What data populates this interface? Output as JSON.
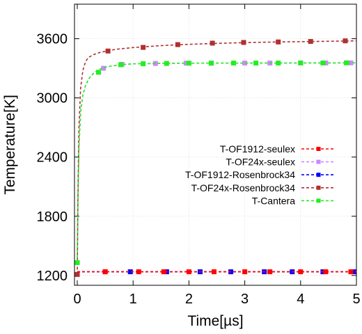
{
  "chart_data": {
    "type": "line",
    "xlabel": "Time[µs]",
    "ylabel": "Temperature[K]",
    "xlim": [
      -0.05,
      5
    ],
    "ylim": [
      1100,
      3950
    ],
    "xticks": [
      0,
      1,
      2,
      3,
      4,
      5
    ],
    "xtick_labels": [
      "0",
      "1",
      "2",
      "3",
      "4",
      "5"
    ],
    "yticks": [
      1200,
      1800,
      2400,
      3000,
      3600
    ],
    "ytick_labels": [
      "1200",
      "1800",
      "2400",
      "3000",
      "3600"
    ],
    "grid": true,
    "legend_position": "right",
    "series": [
      {
        "name": "T-OF1912-seulex",
        "color": "#ff0000",
        "marker": "square",
        "curve": [
          [
            0,
            1237
          ],
          [
            1,
            1237
          ],
          [
            2,
            1237
          ],
          [
            3,
            1237
          ],
          [
            4,
            1237
          ],
          [
            5,
            1237
          ]
        ],
        "points": [
          [
            0.5,
            1237
          ],
          [
            1.1,
            1237
          ],
          [
            1.55,
            1237
          ],
          [
            2.0,
            1237
          ],
          [
            2.45,
            1237
          ],
          [
            3.0,
            1237
          ],
          [
            3.45,
            1237
          ],
          [
            4.0,
            1237
          ],
          [
            4.45,
            1237
          ],
          [
            4.9,
            1237
          ]
        ]
      },
      {
        "name": "T-OF24x-seulex",
        "color": "#cc88ff",
        "marker": "square",
        "curve": [
          [
            0,
            1330
          ],
          [
            0.01,
            1900
          ],
          [
            0.03,
            2500
          ],
          [
            0.06,
            2850
          ],
          [
            0.1,
            3030
          ],
          [
            0.15,
            3130
          ],
          [
            0.22,
            3205
          ],
          [
            0.3,
            3255
          ],
          [
            0.4,
            3290
          ],
          [
            0.5,
            3310
          ],
          [
            0.6,
            3322
          ],
          [
            0.8,
            3338
          ],
          [
            1.0,
            3345
          ],
          [
            1.5,
            3350
          ],
          [
            2.0,
            3352
          ],
          [
            3.0,
            3353
          ],
          [
            4.0,
            3354
          ],
          [
            5.0,
            3355
          ]
        ],
        "points": [
          [
            0.47,
            3300
          ],
          [
            0.8,
            3340
          ],
          [
            1.4,
            3349
          ],
          [
            1.95,
            3352
          ],
          [
            2.4,
            3352
          ],
          [
            3.0,
            3353
          ],
          [
            3.45,
            3353
          ],
          [
            4.0,
            3354
          ],
          [
            4.45,
            3354
          ],
          [
            4.9,
            3355
          ]
        ]
      },
      {
        "name": "T-OF1912-Rosenbrock34",
        "color": "#0000ff",
        "marker": "square",
        "curve": [
          [
            0,
            1237
          ],
          [
            1,
            1237
          ],
          [
            2,
            1237
          ],
          [
            3,
            1237
          ],
          [
            4,
            1237
          ],
          [
            5,
            1237
          ]
        ],
        "points": [
          [
            0.5,
            1237
          ],
          [
            0.95,
            1237
          ],
          [
            1.6,
            1237
          ],
          [
            2.2,
            1237
          ],
          [
            2.75,
            1237
          ],
          [
            3.35,
            1237
          ],
          [
            3.85,
            1237
          ],
          [
            4.4,
            1237
          ],
          [
            4.95,
            1237
          ]
        ]
      },
      {
        "name": "T-OF24x-Rosenbrock34",
        "color": "#b03030",
        "marker": "square",
        "curve": [
          [
            0,
            1210
          ],
          [
            0.01,
            1900
          ],
          [
            0.03,
            2700
          ],
          [
            0.06,
            3100
          ],
          [
            0.1,
            3280
          ],
          [
            0.15,
            3370
          ],
          [
            0.2,
            3410
          ],
          [
            0.3,
            3440
          ],
          [
            0.4,
            3460
          ],
          [
            0.5,
            3472
          ],
          [
            0.7,
            3493
          ],
          [
            1.0,
            3510
          ],
          [
            1.5,
            3530
          ],
          [
            2.0,
            3543
          ],
          [
            2.5,
            3553
          ],
          [
            3.0,
            3560
          ],
          [
            3.5,
            3566
          ],
          [
            4.0,
            3570
          ],
          [
            4.5,
            3574
          ],
          [
            5.0,
            3578
          ]
        ],
        "points": [
          [
            0.0,
            1210
          ],
          [
            0.55,
            3475
          ],
          [
            1.18,
            3512
          ],
          [
            1.8,
            3540
          ],
          [
            2.42,
            3555
          ],
          [
            2.98,
            3562
          ],
          [
            3.6,
            3567
          ],
          [
            4.18,
            3572
          ],
          [
            4.8,
            3578
          ]
        ]
      },
      {
        "name": "T-Cantera",
        "color": "#22ee22",
        "marker": "square",
        "curve": [
          [
            0,
            1330
          ],
          [
            0.01,
            1900
          ],
          [
            0.03,
            2500
          ],
          [
            0.06,
            2850
          ],
          [
            0.1,
            3030
          ],
          [
            0.15,
            3130
          ],
          [
            0.22,
            3205
          ],
          [
            0.3,
            3255
          ],
          [
            0.4,
            3290
          ],
          [
            0.5,
            3310
          ],
          [
            0.6,
            3322
          ],
          [
            0.8,
            3338
          ],
          [
            1.0,
            3345
          ],
          [
            1.5,
            3350
          ],
          [
            2.0,
            3352
          ],
          [
            3.0,
            3353
          ],
          [
            4.0,
            3354
          ],
          [
            5.0,
            3355
          ]
        ],
        "points": [
          [
            0.0,
            1330
          ],
          [
            0.38,
            3260
          ],
          [
            0.78,
            3336
          ],
          [
            1.18,
            3346
          ],
          [
            1.6,
            3349
          ],
          [
            2.0,
            3352
          ],
          [
            2.4,
            3352
          ],
          [
            2.8,
            3353
          ],
          [
            3.2,
            3353
          ],
          [
            3.6,
            3353
          ],
          [
            4.0,
            3354
          ],
          [
            4.4,
            3354
          ],
          [
            4.82,
            3355
          ]
        ]
      }
    ]
  }
}
